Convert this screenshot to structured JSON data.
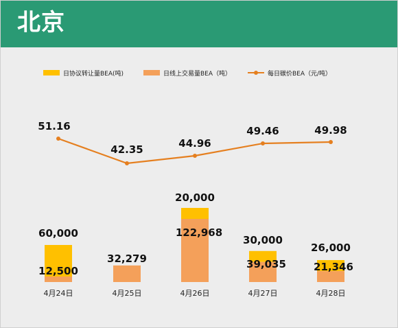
{
  "page": {
    "title": "北京"
  },
  "chart_data": {
    "type": "bar",
    "title": "北京",
    "categories": [
      "4月24日",
      "4月25日",
      "4月26日",
      "4月27日",
      "4月28日"
    ],
    "series": [
      {
        "name": "日协议转让量BEA(吨)",
        "kind": "bar",
        "color": "#ffc000",
        "values": [
          60000,
          null,
          20000,
          30000,
          26000
        ],
        "labels": [
          "60,000",
          "",
          "20,000",
          "30,000",
          "26,000"
        ]
      },
      {
        "name": "日线上交易量BEA（吨）",
        "kind": "bar",
        "color": "#f4a05a",
        "values": [
          12500,
          32279,
          122968,
          39035,
          21346
        ],
        "labels": [
          "12,500",
          "32,279",
          "122,968",
          "39,035",
          "21,346"
        ]
      },
      {
        "name": "每日碳价BEA（元/吨）",
        "kind": "line",
        "color": "#e57f1f",
        "values": [
          51.16,
          42.35,
          44.96,
          49.46,
          49.98
        ],
        "labels": [
          "51.16",
          "42.35",
          "44.96",
          "49.46",
          "49.98"
        ]
      }
    ],
    "legend": "top",
    "grid": false
  }
}
